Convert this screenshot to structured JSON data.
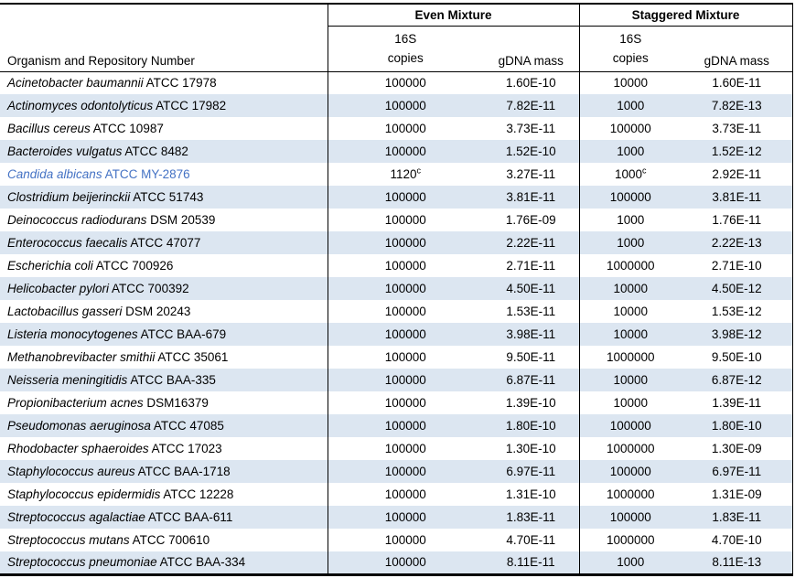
{
  "table": {
    "group_headers": [
      {
        "label": "Even Mixture"
      },
      {
        "label": "Staggered Mixture"
      }
    ],
    "organism_header": "Organism and Repository Number",
    "sub_headers": {
      "copies_line1": "16S",
      "copies_line2": "copies",
      "gdna": "gDNA mass"
    },
    "colors": {
      "stripe": "#DCE6F1",
      "highlight_text": "#4472C4",
      "border": "#000000",
      "background": "#FFFFFF"
    },
    "rows": [
      {
        "name_italic": "Acinetobacter baumannii",
        "name_rest": "ATCC 17978",
        "even_copies": "100000",
        "even_copies_sup": "",
        "even_mass": "1.60E-10",
        "stag_copies": "10000",
        "stag_copies_sup": "",
        "stag_mass": "1.60E-11",
        "highlighted": false
      },
      {
        "name_italic": "Actinomyces odontolyticus",
        "name_rest": "ATCC 17982",
        "even_copies": "100000",
        "even_copies_sup": "",
        "even_mass": "7.82E-11",
        "stag_copies": "1000",
        "stag_copies_sup": "",
        "stag_mass": "7.82E-13",
        "highlighted": false
      },
      {
        "name_italic": "Bacillus cereus",
        "name_rest": "ATCC 10987",
        "even_copies": "100000",
        "even_copies_sup": "",
        "even_mass": "3.73E-11",
        "stag_copies": "100000",
        "stag_copies_sup": "",
        "stag_mass": "3.73E-11",
        "highlighted": false
      },
      {
        "name_italic": "Bacteroides vulgatus",
        "name_rest": "ATCC 8482",
        "even_copies": "100000",
        "even_copies_sup": "",
        "even_mass": "1.52E-10",
        "stag_copies": "1000",
        "stag_copies_sup": "",
        "stag_mass": "1.52E-12",
        "highlighted": false
      },
      {
        "name_italic": "Candida albicans",
        "name_rest": "ATCC MY-2876",
        "even_copies": "1120",
        "even_copies_sup": "c",
        "even_mass": "3.27E-11",
        "stag_copies": "1000",
        "stag_copies_sup": "c",
        "stag_mass": "2.92E-11",
        "highlighted": true
      },
      {
        "name_italic": "Clostridium beijerinckii",
        "name_rest": "ATCC 51743",
        "even_copies": "100000",
        "even_copies_sup": "",
        "even_mass": "3.81E-11",
        "stag_copies": "100000",
        "stag_copies_sup": "",
        "stag_mass": "3.81E-11",
        "highlighted": false
      },
      {
        "name_italic": "Deinococcus radiodurans",
        "name_rest": "DSM 20539",
        "even_copies": "100000",
        "even_copies_sup": "",
        "even_mass": "1.76E-09",
        "stag_copies": "1000",
        "stag_copies_sup": "",
        "stag_mass": "1.76E-11",
        "highlighted": false
      },
      {
        "name_italic": "Enterococcus faecalis",
        "name_rest": "ATCC 47077",
        "even_copies": "100000",
        "even_copies_sup": "",
        "even_mass": "2.22E-11",
        "stag_copies": "1000",
        "stag_copies_sup": "",
        "stag_mass": "2.22E-13",
        "highlighted": false
      },
      {
        "name_italic": "Escherichia coli",
        "name_rest": "ATCC 700926",
        "even_copies": "100000",
        "even_copies_sup": "",
        "even_mass": "2.71E-11",
        "stag_copies": "1000000",
        "stag_copies_sup": "",
        "stag_mass": "2.71E-10",
        "highlighted": false
      },
      {
        "name_italic": "Helicobacter pylori",
        "name_rest": "ATCC 700392",
        "even_copies": "100000",
        "even_copies_sup": "",
        "even_mass": "4.50E-11",
        "stag_copies": "10000",
        "stag_copies_sup": "",
        "stag_mass": "4.50E-12",
        "highlighted": false
      },
      {
        "name_italic": "Lactobacillus gasseri",
        "name_rest": "DSM 20243",
        "even_copies": "100000",
        "even_copies_sup": "",
        "even_mass": "1.53E-11",
        "stag_copies": "10000",
        "stag_copies_sup": "",
        "stag_mass": "1.53E-12",
        "highlighted": false
      },
      {
        "name_italic": "Listeria monocytogenes",
        "name_rest": "ATCC BAA-679",
        "even_copies": "100000",
        "even_copies_sup": "",
        "even_mass": "3.98E-11",
        "stag_copies": "10000",
        "stag_copies_sup": "",
        "stag_mass": "3.98E-12",
        "highlighted": false
      },
      {
        "name_italic": "Methanobrevibacter smithii",
        "name_rest": "ATCC 35061",
        "even_copies": "100000",
        "even_copies_sup": "",
        "even_mass": "9.50E-11",
        "stag_copies": "1000000",
        "stag_copies_sup": "",
        "stag_mass": "9.50E-10",
        "highlighted": false
      },
      {
        "name_italic": "Neisseria meningitidis",
        "name_rest": "ATCC BAA-335",
        "even_copies": "100000",
        "even_copies_sup": "",
        "even_mass": "6.87E-11",
        "stag_copies": "10000",
        "stag_copies_sup": "",
        "stag_mass": "6.87E-12",
        "highlighted": false
      },
      {
        "name_italic": "Propionibacterium acnes",
        "name_rest": "DSM16379",
        "even_copies": "100000",
        "even_copies_sup": "",
        "even_mass": "1.39E-10",
        "stag_copies": "10000",
        "stag_copies_sup": "",
        "stag_mass": "1.39E-11",
        "highlighted": false
      },
      {
        "name_italic": "Pseudomonas aeruginosa",
        "name_rest": "ATCC 47085",
        "even_copies": "100000",
        "even_copies_sup": "",
        "even_mass": "1.80E-10",
        "stag_copies": "100000",
        "stag_copies_sup": "",
        "stag_mass": "1.80E-10",
        "highlighted": false
      },
      {
        "name_italic": "Rhodobacter sphaeroides",
        "name_rest": "ATCC 17023",
        "even_copies": "100000",
        "even_copies_sup": "",
        "even_mass": "1.30E-10",
        "stag_copies": "1000000",
        "stag_copies_sup": "",
        "stag_mass": "1.30E-09",
        "highlighted": false
      },
      {
        "name_italic": "Staphylococcus aureus",
        "name_rest": "ATCC BAA-1718",
        "even_copies": "100000",
        "even_copies_sup": "",
        "even_mass": "6.97E-11",
        "stag_copies": "100000",
        "stag_copies_sup": "",
        "stag_mass": "6.97E-11",
        "highlighted": false
      },
      {
        "name_italic": "Staphylococcus epidermidis",
        "name_rest": "ATCC 12228",
        "even_copies": "100000",
        "even_copies_sup": "",
        "even_mass": "1.31E-10",
        "stag_copies": "1000000",
        "stag_copies_sup": "",
        "stag_mass": "1.31E-09",
        "highlighted": false
      },
      {
        "name_italic": "Streptococcus agalactiae",
        "name_rest": "ATCC BAA-611",
        "even_copies": "100000",
        "even_copies_sup": "",
        "even_mass": "1.83E-11",
        "stag_copies": "100000",
        "stag_copies_sup": "",
        "stag_mass": "1.83E-11",
        "highlighted": false
      },
      {
        "name_italic": "Streptococcus mutans",
        "name_rest": "ATCC 700610",
        "even_copies": "100000",
        "even_copies_sup": "",
        "even_mass": "4.70E-11",
        "stag_copies": "1000000",
        "stag_copies_sup": "",
        "stag_mass": "4.70E-10",
        "highlighted": false
      },
      {
        "name_italic": "Streptococcus pneumoniae",
        "name_rest": "ATCC BAA-334",
        "even_copies": "100000",
        "even_copies_sup": "",
        "even_mass": "8.11E-11",
        "stag_copies": "1000",
        "stag_copies_sup": "",
        "stag_mass": "8.11E-13",
        "highlighted": false
      }
    ]
  }
}
